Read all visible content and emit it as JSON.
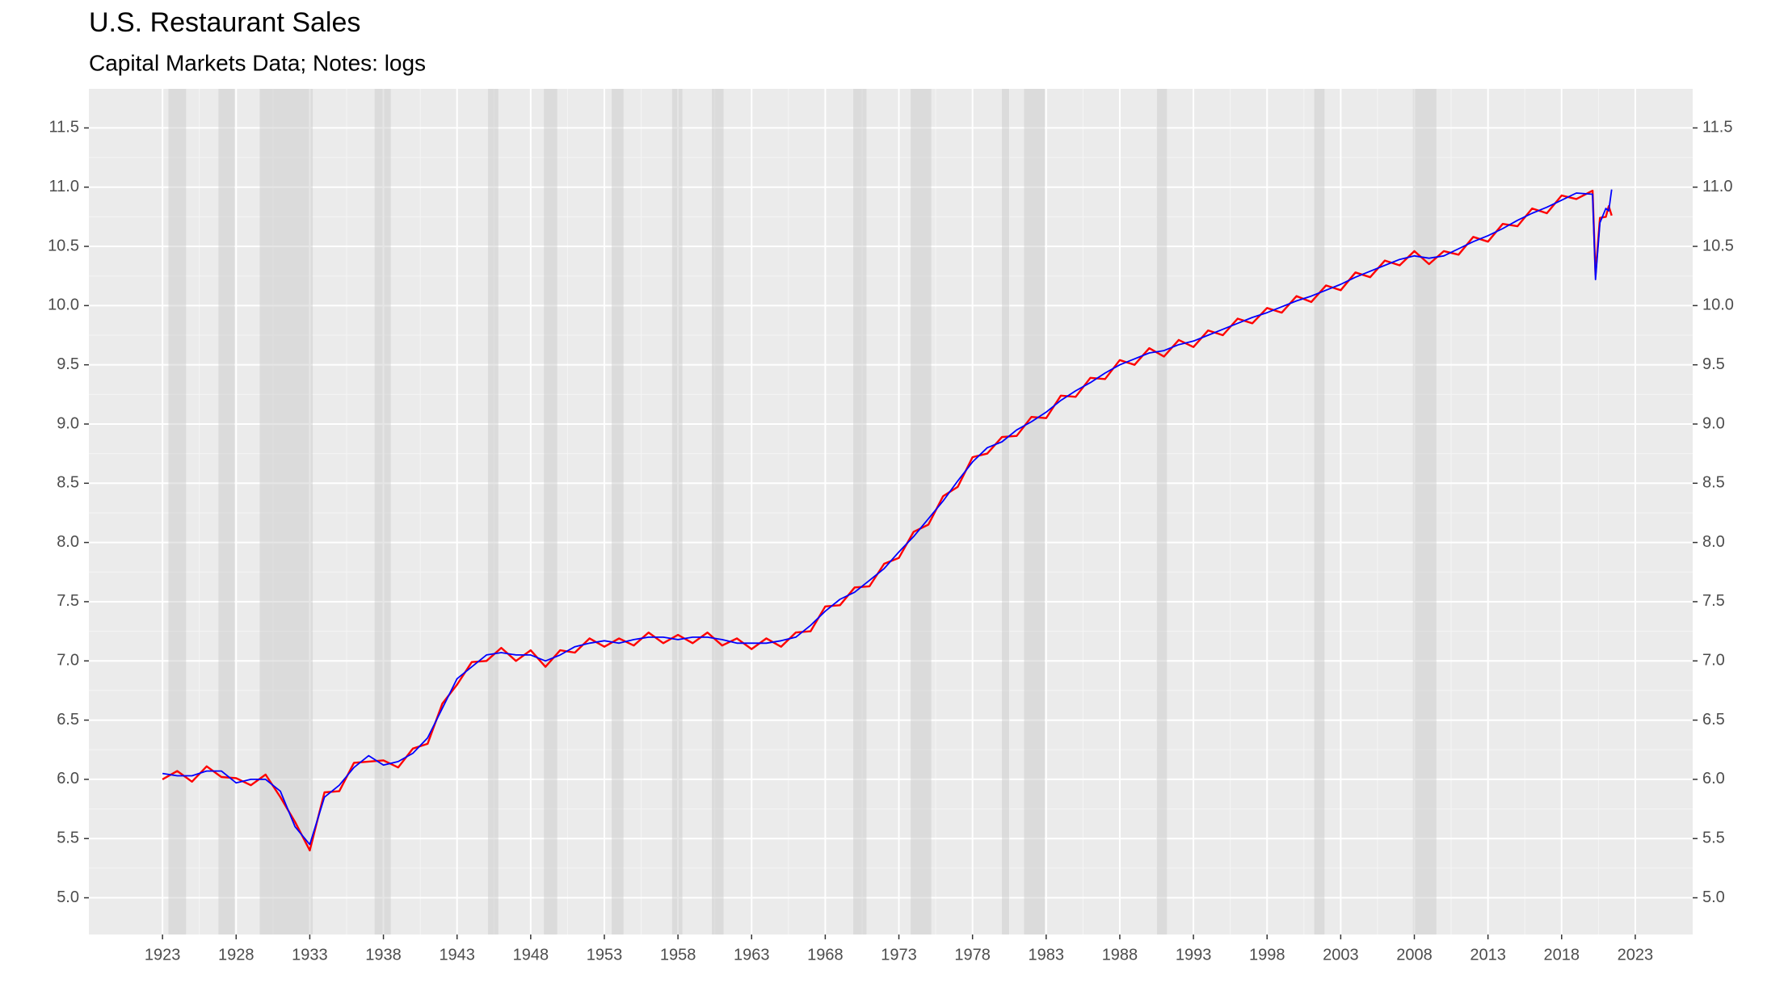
{
  "chart_data": {
    "type": "line",
    "title": "U.S. Restaurant Sales",
    "subtitle": "Capital Markets Data; Notes: logs",
    "xlim": [
      1918,
      2026.9
    ],
    "ylim": [
      4.69,
      11.83
    ],
    "xticks": [
      1923,
      1928,
      1933,
      1938,
      1943,
      1948,
      1953,
      1958,
      1963,
      1968,
      1973,
      1978,
      1983,
      1988,
      1993,
      1998,
      2003,
      2008,
      2013,
      2018,
      2023
    ],
    "yticks": [
      {
        "value": 5,
        "label": "5.0"
      },
      5.5,
      {
        "value": 6,
        "label": "6.0"
      },
      6.5,
      {
        "value": 7,
        "label": "7.0"
      },
      7.5,
      {
        "value": 8,
        "label": "8.0"
      },
      8.5,
      {
        "value": 9,
        "label": "9.0"
      },
      9.5,
      {
        "value": 10,
        "label": "10.0"
      },
      10.5,
      {
        "value": 11,
        "label": "11.0"
      },
      11.5
    ],
    "grid": true,
    "recessions": [
      [
        1923.4,
        1924.6
      ],
      [
        1926.8,
        1927.9
      ],
      [
        1929.6,
        1933.2
      ],
      [
        1937.4,
        1938.5
      ],
      [
        1945.1,
        1945.8
      ],
      [
        1948.9,
        1949.8
      ],
      [
        1953.5,
        1954.3
      ],
      [
        1957.6,
        1958.3
      ],
      [
        1960.3,
        1961.1
      ],
      [
        1969.9,
        1970.8
      ],
      [
        1973.8,
        1975.2
      ],
      [
        1980.0,
        1980.5
      ],
      [
        1981.5,
        1982.9
      ],
      [
        1990.5,
        1991.2
      ],
      [
        2001.2,
        2001.9
      ],
      [
        2007.9,
        2009.5
      ]
    ],
    "x": [
      1923,
      1924,
      1925,
      1926,
      1927,
      1928,
      1929,
      1930,
      1931,
      1932,
      1933,
      1934,
      1935,
      1936,
      1937,
      1938,
      1939,
      1940,
      1941,
      1942,
      1943,
      1944,
      1945,
      1946,
      1947,
      1948,
      1949,
      1950,
      1951,
      1952,
      1953,
      1954,
      1955,
      1956,
      1957,
      1958,
      1959,
      1960,
      1961,
      1962,
      1963,
      1964,
      1965,
      1966,
      1967,
      1968,
      1969,
      1970,
      1971,
      1972,
      1973,
      1974,
      1975,
      1976,
      1977,
      1978,
      1979,
      1980,
      1981,
      1982,
      1983,
      1984,
      1985,
      1986,
      1987,
      1988,
      1989,
      1990,
      1991,
      1992,
      1993,
      1994,
      1995,
      1996,
      1997,
      1998,
      1999,
      2000,
      2001,
      2002,
      2003,
      2004,
      2005,
      2006,
      2007,
      2008,
      2009,
      2010,
      2011,
      2012,
      2013,
      2014,
      2015,
      2016,
      2017,
      2018,
      2019,
      2020.1,
      2020.3,
      2020.6,
      2021,
      2021.2,
      2021.4
    ],
    "series": [
      {
        "color": "#ff0000",
        "values": [
          6.0,
          6.07,
          5.98,
          6.11,
          6.02,
          6.01,
          5.95,
          6.04,
          5.85,
          5.64,
          5.4,
          5.89,
          5.9,
          6.14,
          6.15,
          6.16,
          6.1,
          6.26,
          6.3,
          6.64,
          6.8,
          6.99,
          7.0,
          7.11,
          7.0,
          7.09,
          6.95,
          7.09,
          7.07,
          7.19,
          7.12,
          7.19,
          7.13,
          7.24,
          7.15,
          7.22,
          7.15,
          7.24,
          7.13,
          7.19,
          7.1,
          7.19,
          7.12,
          7.24,
          7.25,
          7.46,
          7.47,
          7.62,
          7.63,
          7.82,
          7.87,
          8.09,
          8.15,
          8.39,
          8.47,
          8.72,
          8.75,
          8.89,
          8.9,
          9.06,
          9.05,
          9.24,
          9.23,
          9.39,
          9.38,
          9.54,
          9.5,
          9.64,
          9.57,
          9.71,
          9.65,
          9.79,
          9.75,
          9.89,
          9.85,
          9.98,
          9.94,
          10.08,
          10.03,
          10.17,
          10.13,
          10.28,
          10.24,
          10.38,
          10.34,
          10.46,
          10.35,
          10.46,
          10.43,
          10.58,
          10.54,
          10.69,
          10.67,
          10.82,
          10.78,
          10.93,
          10.9,
          10.97,
          10.26,
          10.74,
          10.75,
          10.84,
          10.76
        ]
      },
      {
        "color": "#0000ff",
        "values": [
          6.05,
          6.03,
          6.03,
          6.07,
          6.07,
          5.97,
          6.0,
          6.0,
          5.9,
          5.6,
          5.45,
          5.85,
          5.95,
          6.1,
          6.2,
          6.12,
          6.15,
          6.22,
          6.35,
          6.6,
          6.85,
          6.95,
          7.05,
          7.07,
          7.05,
          7.05,
          7.0,
          7.05,
          7.12,
          7.15,
          7.17,
          7.15,
          7.18,
          7.2,
          7.2,
          7.18,
          7.2,
          7.2,
          7.18,
          7.15,
          7.15,
          7.15,
          7.17,
          7.2,
          7.3,
          7.42,
          7.52,
          7.58,
          7.68,
          7.78,
          7.92,
          8.05,
          8.2,
          8.35,
          8.52,
          8.68,
          8.8,
          8.85,
          8.95,
          9.02,
          9.1,
          9.2,
          9.28,
          9.35,
          9.43,
          9.5,
          9.55,
          9.6,
          9.62,
          9.67,
          9.7,
          9.75,
          9.8,
          9.85,
          9.9,
          9.94,
          9.99,
          10.04,
          10.08,
          10.13,
          10.18,
          10.24,
          10.29,
          10.34,
          10.39,
          10.42,
          10.4,
          10.42,
          10.48,
          10.54,
          10.59,
          10.65,
          10.72,
          10.78,
          10.83,
          10.89,
          10.95,
          10.94,
          10.22,
          10.7,
          10.82,
          10.8,
          10.98
        ]
      }
    ]
  }
}
